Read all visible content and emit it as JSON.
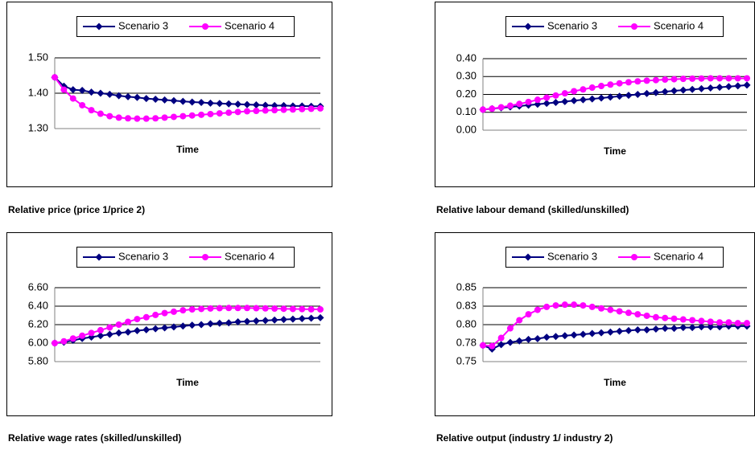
{
  "chart_data": [
    {
      "type": "line",
      "caption": "Relative price (price 1/price 2)",
      "xlabel": "Time",
      "categories": [
        null,
        null,
        null,
        null,
        null,
        null,
        null,
        null,
        null,
        null,
        null,
        null,
        null,
        null,
        null,
        null,
        null,
        null,
        null,
        null,
        null,
        null,
        null,
        null,
        null,
        null,
        null,
        null,
        null,
        null
      ],
      "ylim": [
        1.3,
        1.5
      ],
      "yticks": [
        {
          "value": 1.3,
          "label": "1.30"
        },
        {
          "value": 1.4,
          "label": "1.40"
        },
        {
          "value": 1.5,
          "label": "1.50"
        }
      ],
      "series": [
        {
          "name": "Scenario 3",
          "color": "#000080",
          "marker": "diamond",
          "values": [
            1.445,
            1.42,
            1.41,
            1.408,
            1.403,
            1.4,
            1.397,
            1.393,
            1.39,
            1.388,
            1.385,
            1.383,
            1.381,
            1.379,
            1.377,
            1.375,
            1.374,
            1.372,
            1.371,
            1.37,
            1.369,
            1.368,
            1.367,
            1.366,
            1.365,
            1.365,
            1.364,
            1.364,
            1.363,
            1.363
          ]
        },
        {
          "name": "Scenario 4",
          "color": "#ff00ff",
          "marker": "circle",
          "values": [
            1.445,
            1.41,
            1.385,
            1.366,
            1.352,
            1.342,
            1.335,
            1.331,
            1.329,
            1.328,
            1.328,
            1.329,
            1.331,
            1.333,
            1.335,
            1.337,
            1.339,
            1.341,
            1.343,
            1.345,
            1.347,
            1.349,
            1.35,
            1.351,
            1.352,
            1.353,
            1.354,
            1.355,
            1.356,
            1.357
          ]
        }
      ]
    },
    {
      "type": "line",
      "caption": "Relative labour demand (skilled/unskilled)",
      "xlabel": "Time",
      "categories": [
        null,
        null,
        null,
        null,
        null,
        null,
        null,
        null,
        null,
        null,
        null,
        null,
        null,
        null,
        null,
        null,
        null,
        null,
        null,
        null,
        null,
        null,
        null,
        null,
        null,
        null,
        null,
        null,
        null,
        null
      ],
      "ylim": [
        0,
        0.4
      ],
      "yticks": [
        {
          "value": 0,
          "label": "0.00"
        },
        {
          "value": 0.1,
          "label": "0.10"
        },
        {
          "value": 0.2,
          "label": "0.20"
        },
        {
          "value": 0.3,
          "label": "0.30"
        },
        {
          "value": 0.4,
          "label": "0.40"
        }
      ],
      "series": [
        {
          "name": "Scenario 3",
          "color": "#000080",
          "marker": "diamond",
          "values": [
            0.115,
            0.12,
            0.125,
            0.13,
            0.135,
            0.14,
            0.145,
            0.15,
            0.155,
            0.16,
            0.165,
            0.17,
            0.175,
            0.18,
            0.185,
            0.19,
            0.195,
            0.2,
            0.205,
            0.21,
            0.215,
            0.22,
            0.224,
            0.228,
            0.232,
            0.236,
            0.24,
            0.244,
            0.248,
            0.252
          ]
        },
        {
          "name": "Scenario 4",
          "color": "#ff00ff",
          "marker": "circle",
          "values": [
            0.115,
            0.12,
            0.128,
            0.137,
            0.147,
            0.158,
            0.17,
            0.182,
            0.194,
            0.206,
            0.218,
            0.228,
            0.238,
            0.247,
            0.255,
            0.262,
            0.268,
            0.273,
            0.277,
            0.28,
            0.283,
            0.285,
            0.287,
            0.288,
            0.289,
            0.29,
            0.29,
            0.29,
            0.29,
            0.29
          ]
        }
      ]
    },
    {
      "type": "line",
      "caption": "Relative wage rates (skilled/unskilled)",
      "xlabel": "Time",
      "categories": [
        null,
        null,
        null,
        null,
        null,
        null,
        null,
        null,
        null,
        null,
        null,
        null,
        null,
        null,
        null,
        null,
        null,
        null,
        null,
        null,
        null,
        null,
        null,
        null,
        null,
        null,
        null,
        null,
        null,
        null
      ],
      "ylim": [
        5.8,
        6.6
      ],
      "yticks": [
        {
          "value": 5.8,
          "label": "5.80"
        },
        {
          "value": 6.0,
          "label": "6.00"
        },
        {
          "value": 6.2,
          "label": "6.20"
        },
        {
          "value": 6.4,
          "label": "6.40"
        },
        {
          "value": 6.6,
          "label": "6.60"
        }
      ],
      "series": [
        {
          "name": "Scenario 3",
          "color": "#000080",
          "marker": "diamond",
          "values": [
            6.0,
            6.01,
            6.03,
            6.05,
            6.065,
            6.08,
            6.095,
            6.11,
            6.12,
            6.135,
            6.145,
            6.155,
            6.165,
            6.175,
            6.185,
            6.195,
            6.2,
            6.21,
            6.215,
            6.22,
            6.23,
            6.235,
            6.24,
            6.245,
            6.25,
            6.255,
            6.26,
            6.265,
            6.27,
            6.275
          ]
        },
        {
          "name": "Scenario 4",
          "color": "#ff00ff",
          "marker": "circle",
          "values": [
            6.0,
            6.02,
            6.05,
            6.08,
            6.11,
            6.14,
            6.17,
            6.2,
            6.23,
            6.26,
            6.28,
            6.305,
            6.325,
            6.34,
            6.355,
            6.365,
            6.37,
            6.375,
            6.378,
            6.38,
            6.38,
            6.38,
            6.378,
            6.376,
            6.374,
            6.372,
            6.37,
            6.368,
            6.366,
            6.365
          ]
        }
      ]
    },
    {
      "type": "line",
      "caption": "Relative output (industry 1/ industry 2)",
      "xlabel": "Time",
      "categories": [
        null,
        null,
        null,
        null,
        null,
        null,
        null,
        null,
        null,
        null,
        null,
        null,
        null,
        null,
        null,
        null,
        null,
        null,
        null,
        null,
        null,
        null,
        null,
        null,
        null,
        null,
        null,
        null,
        null,
        null
      ],
      "ylim": [
        0.75,
        0.85
      ],
      "yticks": [
        {
          "value": 0.75,
          "label": "0.75"
        },
        {
          "value": 0.775,
          "label": "0.78"
        },
        {
          "value": 0.8,
          "label": "0.80"
        },
        {
          "value": 0.825,
          "label": "0.83"
        },
        {
          "value": 0.85,
          "label": "0.85"
        }
      ],
      "series": [
        {
          "name": "Scenario 3",
          "color": "#000080",
          "marker": "diamond",
          "values": [
            0.772,
            0.767,
            0.773,
            0.776,
            0.778,
            0.78,
            0.781,
            0.783,
            0.784,
            0.785,
            0.786,
            0.787,
            0.788,
            0.789,
            0.79,
            0.791,
            0.792,
            0.793,
            0.793,
            0.794,
            0.795,
            0.795,
            0.796,
            0.796,
            0.797,
            0.797,
            0.797,
            0.798,
            0.798,
            0.798
          ]
        },
        {
          "name": "Scenario 4",
          "color": "#ff00ff",
          "marker": "circle",
          "values": [
            0.772,
            0.771,
            0.782,
            0.795,
            0.806,
            0.814,
            0.82,
            0.824,
            0.826,
            0.827,
            0.827,
            0.826,
            0.824,
            0.822,
            0.82,
            0.818,
            0.816,
            0.814,
            0.812,
            0.81,
            0.809,
            0.808,
            0.807,
            0.806,
            0.805,
            0.804,
            0.803,
            0.803,
            0.802,
            0.802
          ]
        }
      ]
    }
  ]
}
